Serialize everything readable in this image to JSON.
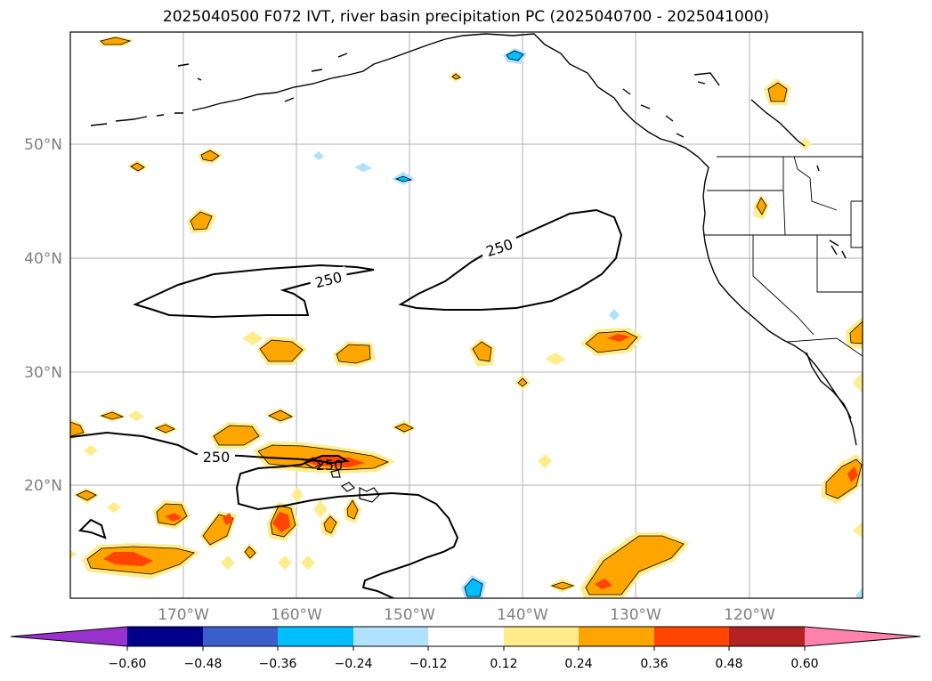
{
  "title": "2025040500 F072 IVT, river basin precipitation PC (2025040700 - 2025041000)",
  "lat_labels": [
    "50°N",
    "40°N",
    "30°N",
    "20°N"
  ],
  "lon_labels": [
    "170°W",
    "160°W",
    "150°W",
    "140°W",
    "130°W",
    "120°W"
  ],
  "contour_labels": [
    "250",
    "250",
    "250",
    "250"
  ],
  "colorbar": {
    "ticks": [
      "−0.60",
      "−0.48",
      "−0.36",
      "−0.24",
      "−0.12",
      "0.12",
      "0.24",
      "0.36",
      "0.48",
      "0.60"
    ],
    "colors": [
      "#9932cc",
      "#00008b",
      "#3a5fcd",
      "#00bfff",
      "#b0e2ff",
      "#ffffff",
      "#ffec8b",
      "#ffa500",
      "#ff4500",
      "#b22222",
      "#ff82ab"
    ]
  }
}
